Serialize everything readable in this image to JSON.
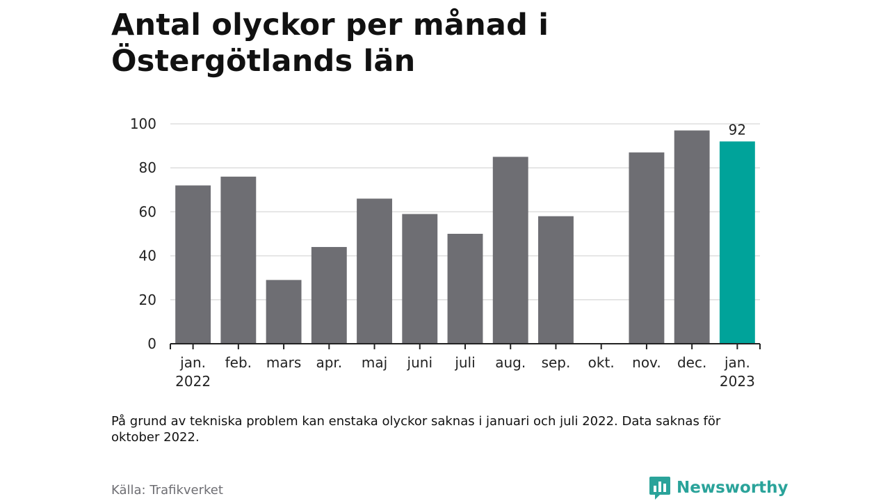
{
  "title": "Antal olyckor per månad i Östergötlands län",
  "note": "På grund av tekniska problem kan enstaka olyckor saknas i januari och juli 2022. Data saknas för oktober 2022.",
  "source": "Källa: Trafikverket",
  "brand": {
    "name": "Newsworthy",
    "icon": "newsworthy-logo-icon"
  },
  "colors": {
    "bar": "#6e6e73",
    "highlight": "#00a39a",
    "grid": "#dddddd",
    "axis": "#222222"
  },
  "chart_data": {
    "type": "bar",
    "categories": [
      [
        "jan.",
        "2022"
      ],
      [
        "feb."
      ],
      [
        "mars"
      ],
      [
        "apr."
      ],
      [
        "maj"
      ],
      [
        "juni"
      ],
      [
        "juli"
      ],
      [
        "aug."
      ],
      [
        "sep."
      ],
      [
        "okt."
      ],
      [
        "nov."
      ],
      [
        "dec."
      ],
      [
        "jan.",
        "2023"
      ]
    ],
    "values": [
      72,
      76,
      29,
      44,
      66,
      59,
      50,
      85,
      58,
      null,
      87,
      97,
      92
    ],
    "highlight_index": 12,
    "data_labels": [
      {
        "index": 12,
        "text": "92"
      }
    ],
    "ylim": [
      0,
      100
    ],
    "yticks": [
      0,
      20,
      40,
      60,
      80,
      100
    ],
    "grid": true,
    "xlabel": "",
    "ylabel": ""
  }
}
